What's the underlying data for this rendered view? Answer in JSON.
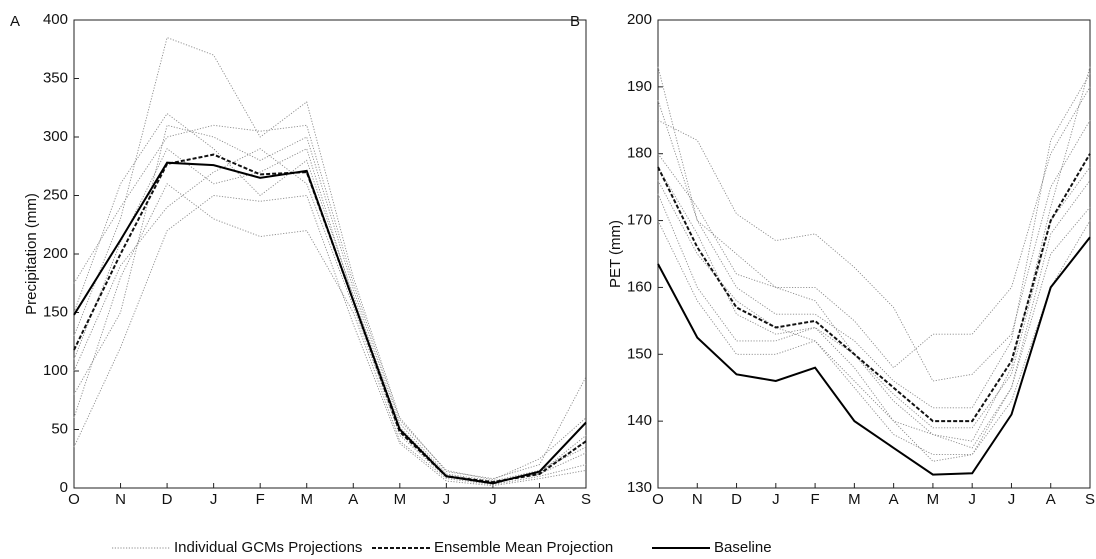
{
  "chart_data": [
    {
      "type": "line",
      "panel": "A",
      "y_label": "Precipitation (mm)",
      "categories": [
        "O",
        "N",
        "D",
        "J",
        "F",
        "M",
        "A",
        "M",
        "J",
        "J",
        "A",
        "S"
      ],
      "ylim": [
        0,
        400
      ],
      "yticks": [
        0,
        50,
        100,
        150,
        200,
        250,
        300,
        350,
        400
      ],
      "series": [
        {
          "name": "Individual GCMs Projections",
          "color": "#8a8a8a",
          "style": "dotted",
          "values": [
            [
              80,
              150,
              310,
              300,
              280,
              300,
              170,
              55,
              12,
              6,
              15,
              35
            ],
            [
              130,
              230,
              385,
              370,
              300,
              330,
              180,
              60,
              14,
              8,
              20,
              95
            ],
            [
              60,
              180,
              260,
              230,
              215,
              220,
              150,
              40,
              8,
              3,
              10,
              20
            ],
            [
              150,
              260,
              320,
              290,
              250,
              280,
              165,
              52,
              11,
              4,
              13,
              45
            ],
            [
              100,
              190,
              240,
              270,
              290,
              260,
              155,
              45,
              9,
              5,
              12,
              30
            ],
            [
              175,
              240,
              300,
              310,
              305,
              310,
              175,
              58,
              15,
              7,
              25,
              60
            ],
            [
              35,
              120,
              220,
              250,
              245,
              250,
              140,
              38,
              6,
              2,
              8,
              15
            ],
            [
              110,
              210,
              290,
              260,
              270,
              290,
              162,
              50,
              10,
              5,
              14,
              40
            ]
          ]
        },
        {
          "name": "Ensemble Mean Projection",
          "color": "#111111",
          "style": "dashed",
          "values": [
            118,
            200,
            277,
            285,
            268,
            270,
            160,
            48,
            10,
            5,
            12,
            40
          ]
        },
        {
          "name": "Baseline",
          "color": "#000000",
          "style": "solid",
          "values": [
            148,
            212,
            278,
            276,
            265,
            271,
            160,
            50,
            10,
            4,
            14,
            56
          ]
        }
      ]
    },
    {
      "type": "line",
      "panel": "B",
      "y_label": "PET (mm)",
      "categories": [
        "O",
        "N",
        "D",
        "J",
        "F",
        "M",
        "A",
        "M",
        "J",
        "J",
        "A",
        "S"
      ],
      "ylim": [
        130,
        200
      ],
      "yticks": [
        130,
        140,
        150,
        160,
        170,
        180,
        190,
        200
      ],
      "series": [
        {
          "color": "#8a8a8a",
          "style": "dotted",
          "values": [
            [
              193,
              170,
              165,
              160,
              158,
              150,
              143,
              138,
              137,
              148,
              172,
              193
            ],
            [
              185,
              182,
              171,
              167,
              168,
              163,
              157,
              146,
              147,
              153,
              175,
              185
            ],
            [
              174,
              160,
              152,
              152,
              154,
              148,
              140,
              134,
              135,
              145,
              168,
              176
            ],
            [
              180,
              172,
              162,
              160,
              160,
              155,
              148,
              153,
              153,
              160,
              180,
              190
            ],
            [
              176,
              165,
              158,
              154,
              152,
              146,
              140,
              138,
              136,
              145,
              165,
              172
            ],
            [
              170,
              158,
              150,
              150,
              152,
              145,
              138,
              135,
              135,
              143,
              160,
              170
            ],
            [
              188,
              170,
              160,
              156,
              156,
              152,
              146,
              142,
              142,
              152,
              182,
              192
            ],
            [
              178,
              168,
              156,
              153,
              154,
              150,
              144,
              139,
              139,
              147,
              170,
              178
            ]
          ]
        },
        {
          "color": "#111111",
          "style": "dashed",
          "values": [
            178,
            166,
            157,
            154,
            155,
            150,
            145,
            140,
            140,
            149,
            170,
            180
          ]
        },
        {
          "color": "#000000",
          "style": "solid",
          "values": [
            163.5,
            152.5,
            147,
            146,
            148,
            140,
            136,
            132,
            132.2,
            141,
            160,
            167.5
          ]
        }
      ]
    }
  ]
}
